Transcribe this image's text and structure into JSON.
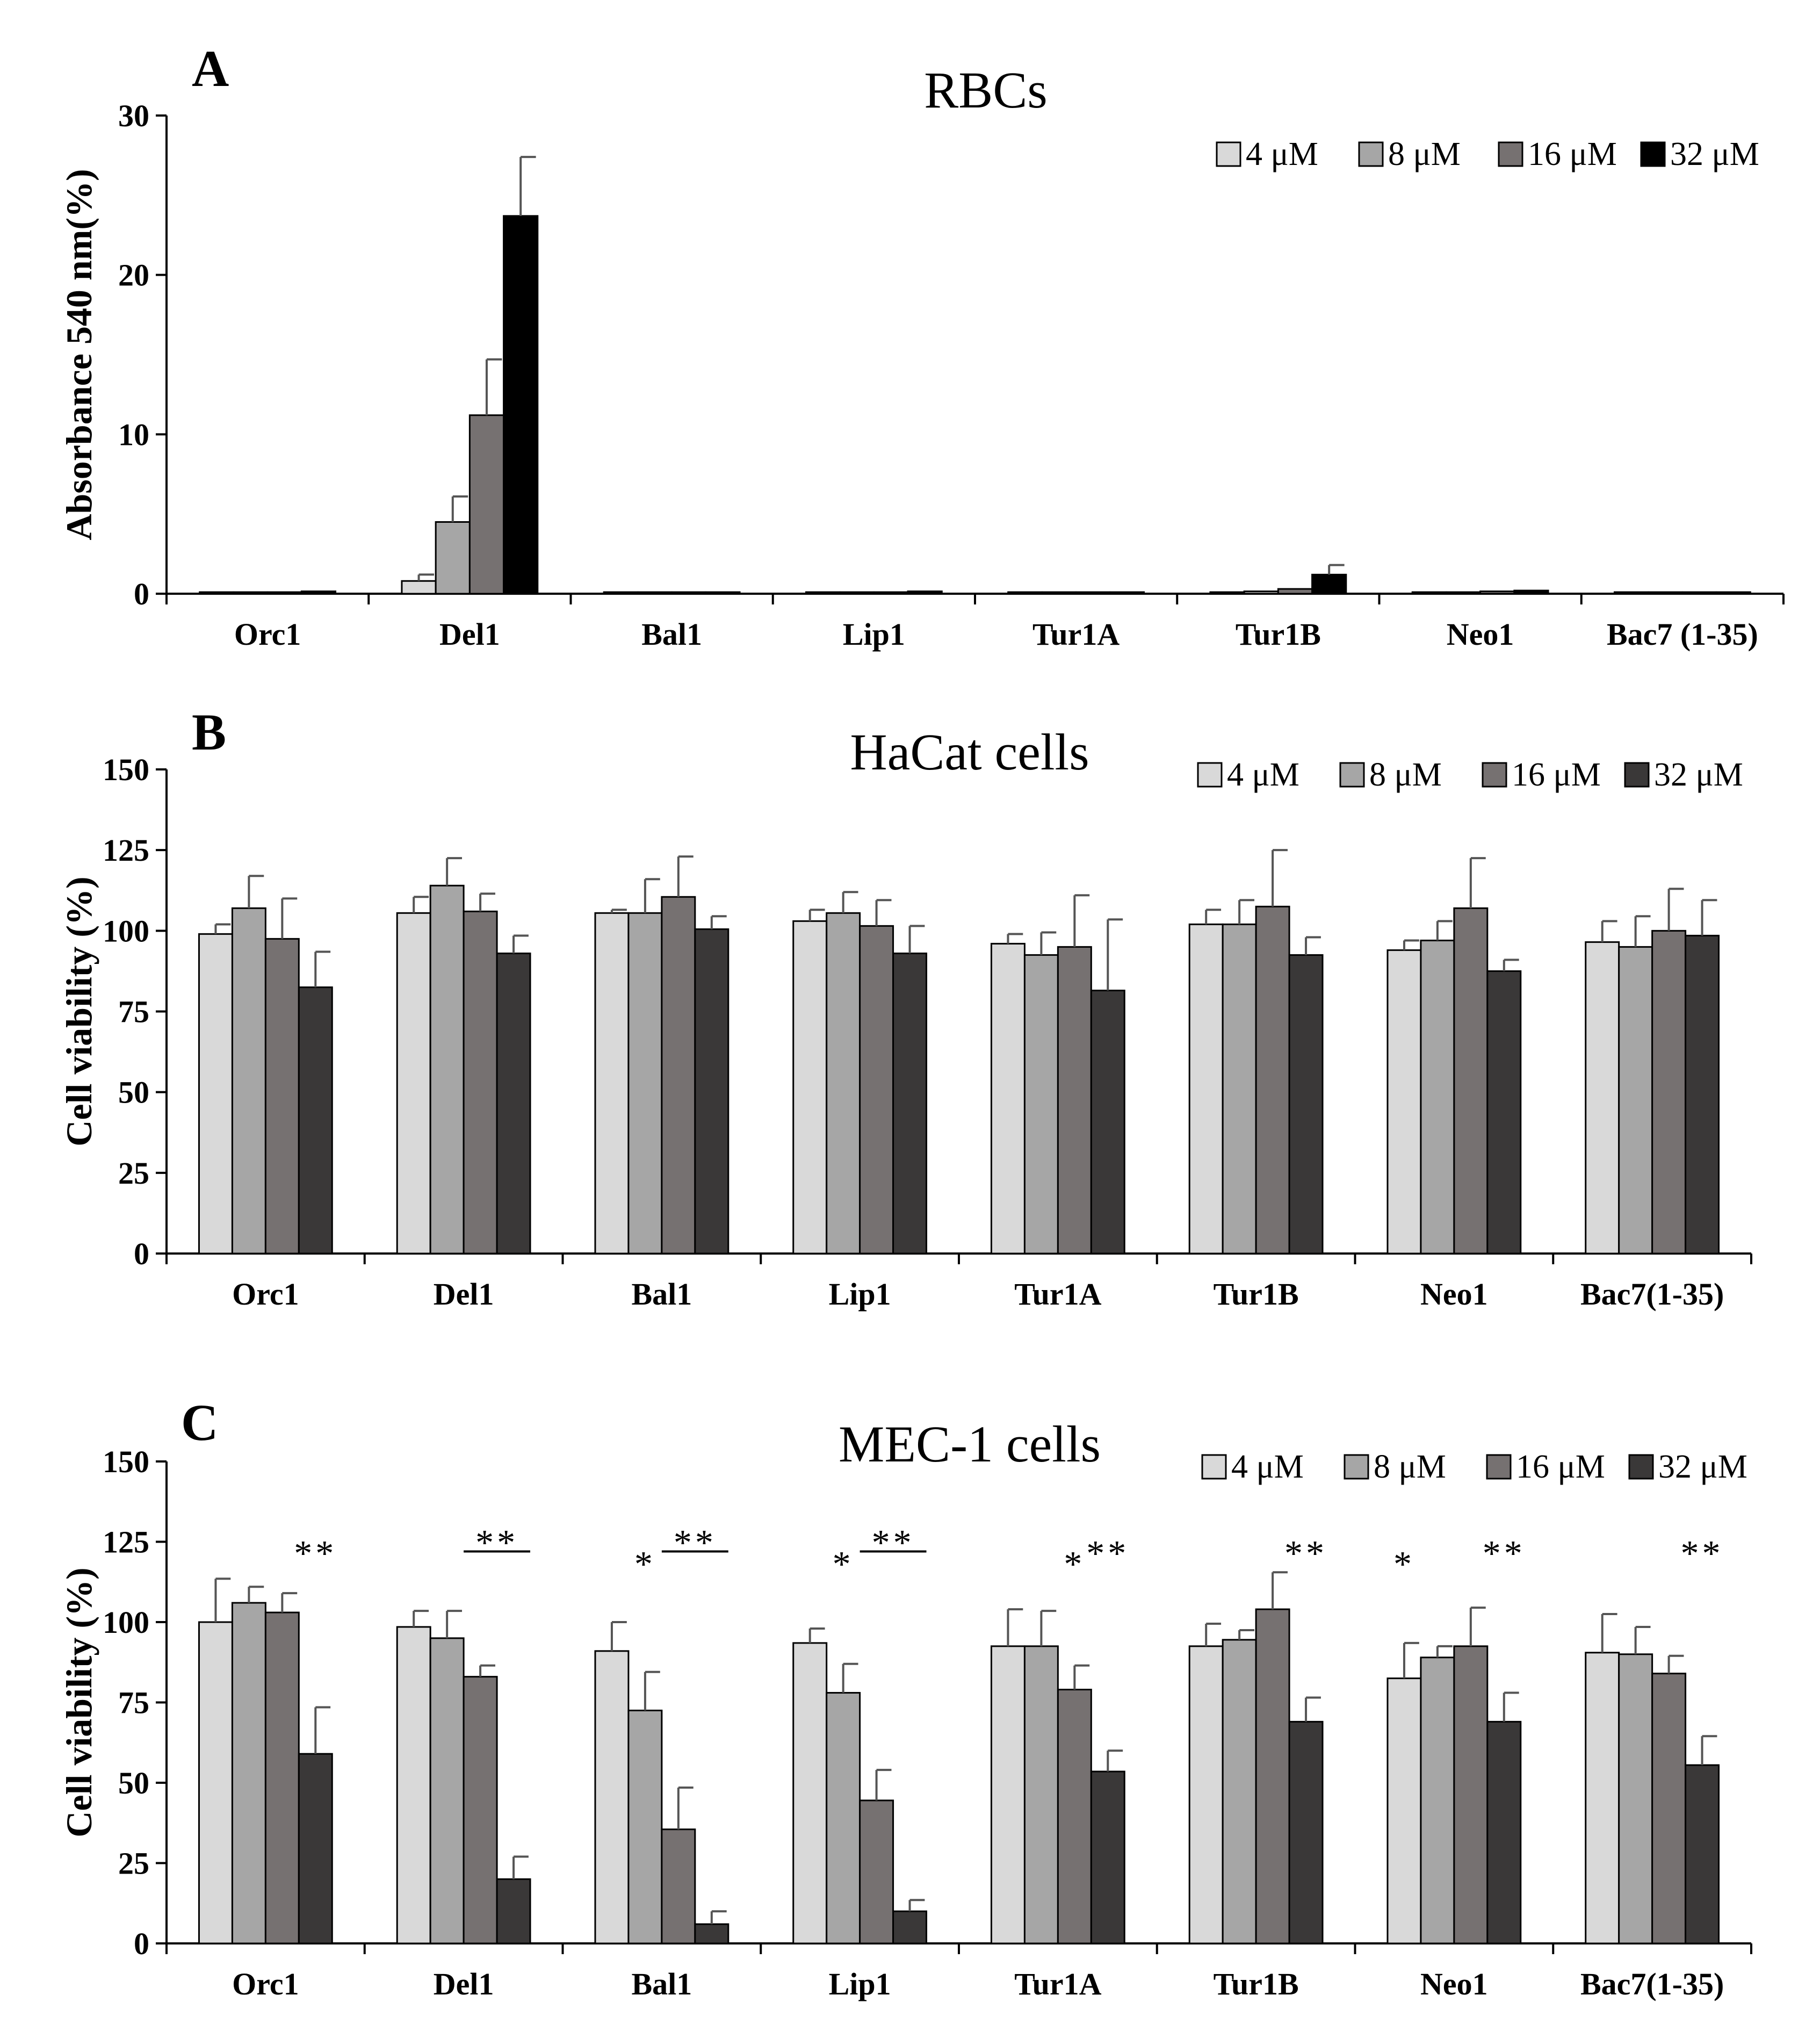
{
  "figure": {
    "categories_style": "bold",
    "colors": {
      "axis": "#000000",
      "errorbar": "#555555"
    }
  },
  "chart_data": [
    {
      "type": "bar",
      "panel_letter": "A",
      "title": "RBCs",
      "ylabel": "Absorbance 540 nm(%)",
      "xlabel": "",
      "ylim": [
        0,
        30
      ],
      "yticks": [
        0,
        10,
        20,
        30
      ],
      "grid": false,
      "legend_position": "top-right",
      "categories": [
        "Orc1",
        "Del1",
        "Bal1",
        "Lip1",
        "Tur1A",
        "Tur1B",
        "Neo1",
        "Bac7 (1-35)"
      ],
      "series": [
        {
          "name": "4 μM",
          "color": "#d9d9d9",
          "values": [
            0.1,
            0.8,
            0.1,
            0.1,
            0.1,
            0.1,
            0.1,
            0.1
          ],
          "errors": [
            0,
            0.4,
            0,
            0,
            0,
            0,
            0,
            0
          ]
        },
        {
          "name": "8 μM",
          "color": "#a6a6a6",
          "values": [
            0.1,
            4.5,
            0.1,
            0.1,
            0.1,
            0.15,
            0.1,
            0.1
          ],
          "errors": [
            0,
            1.6,
            0,
            0,
            0,
            0,
            0,
            0
          ]
        },
        {
          "name": "16 μM",
          "color": "#767171",
          "values": [
            0.1,
            11.2,
            0.1,
            0.1,
            0.1,
            0.3,
            0.15,
            0.1
          ],
          "errors": [
            0,
            3.5,
            0,
            0,
            0,
            0,
            0,
            0
          ]
        },
        {
          "name": "32 μM",
          "color": "#000000",
          "values": [
            0.15,
            23.7,
            0.1,
            0.15,
            0.1,
            1.2,
            0.2,
            0.1
          ],
          "errors": [
            0,
            3.7,
            0,
            0,
            0,
            0.6,
            0,
            0
          ]
        }
      ],
      "annotations": []
    },
    {
      "type": "bar",
      "panel_letter": "B",
      "title": "HaCat cells",
      "ylabel": "Cell viability (%)",
      "xlabel": "",
      "ylim": [
        0,
        150
      ],
      "yticks": [
        0,
        25,
        50,
        75,
        100,
        125,
        150
      ],
      "grid": false,
      "legend_position": "top-right",
      "categories": [
        "Orc1",
        "Del1",
        "Bal1",
        "Lip1",
        "Tur1A",
        "Tur1B",
        "Neo1",
        "Bac7(1-35)"
      ],
      "series": [
        {
          "name": "4 μM",
          "color": "#d9d9d9",
          "values": [
            99,
            105.5,
            105.5,
            103,
            96,
            102,
            94,
            96.5
          ],
          "errors": [
            3,
            5,
            1,
            3.5,
            3,
            4.5,
            3,
            6.5
          ]
        },
        {
          "name": "8 μM",
          "color": "#a6a6a6",
          "values": [
            107,
            114,
            105.5,
            105.5,
            92.5,
            102,
            97,
            95
          ],
          "errors": [
            10,
            8.5,
            10.5,
            6.5,
            7,
            7.5,
            6,
            9.5
          ]
        },
        {
          "name": "16 μM",
          "color": "#767171",
          "values": [
            97.5,
            106,
            110.5,
            101.5,
            95,
            107.5,
            107,
            100
          ],
          "errors": [
            12.5,
            5.5,
            12.5,
            8,
            16,
            17.5,
            15.5,
            13
          ]
        },
        {
          "name": "32 μM",
          "color": "#3a3838",
          "values": [
            82.5,
            93,
            100.5,
            93,
            81.5,
            92.5,
            87.5,
            98.5
          ],
          "errors": [
            11,
            5.5,
            4,
            8.5,
            22,
            5.5,
            3.5,
            11
          ]
        }
      ],
      "annotations": []
    },
    {
      "type": "bar",
      "panel_letter": "C",
      "title": "MEC-1 cells",
      "ylabel": "Cell viability (%)",
      "xlabel": "",
      "ylim": [
        0,
        150
      ],
      "yticks": [
        0,
        25,
        50,
        75,
        100,
        125,
        150
      ],
      "grid": false,
      "legend_position": "top-right",
      "categories": [
        "Orc1",
        "Del1",
        "Bal1",
        "Lip1",
        "Tur1A",
        "Tur1B",
        "Neo1",
        "Bac7(1-35)"
      ],
      "series": [
        {
          "name": "4 μM",
          "color": "#d9d9d9",
          "values": [
            100,
            98.5,
            91,
            93.5,
            92.5,
            92.5,
            82.5,
            90.5
          ],
          "errors": [
            13.5,
            5,
            9,
            4.5,
            11.5,
            7,
            11,
            12
          ]
        },
        {
          "name": "8 μM",
          "color": "#a6a6a6",
          "values": [
            106,
            95,
            72.5,
            78,
            92.5,
            94.5,
            89,
            90
          ],
          "errors": [
            5,
            8.5,
            12,
            9,
            11,
            3,
            3.5,
            8.5
          ]
        },
        {
          "name": "16 μM",
          "color": "#767171",
          "values": [
            103,
            83,
            35.5,
            44.5,
            79,
            104,
            92.5,
            84
          ],
          "errors": [
            6,
            3.5,
            13,
            9.5,
            7.5,
            11.5,
            12,
            5.5
          ]
        },
        {
          "name": "32 μM",
          "color": "#3a3838",
          "values": [
            59,
            20,
            6,
            10,
            53.5,
            69,
            69,
            55.5
          ],
          "errors": [
            14.5,
            7,
            4,
            3.5,
            6.5,
            7.5,
            9,
            9
          ]
        }
      ],
      "annotations": [
        {
          "category": 0,
          "from_series": 3,
          "to_series": 3,
          "text": "**",
          "line": false
        },
        {
          "category": 1,
          "from_series": 2,
          "to_series": 3,
          "text": "**",
          "line": true
        },
        {
          "category": 2,
          "from_series": 1,
          "to_series": 1,
          "text": "*",
          "line": false
        },
        {
          "category": 2,
          "from_series": 2,
          "to_series": 3,
          "text": "**",
          "line": true
        },
        {
          "category": 3,
          "from_series": 1,
          "to_series": 1,
          "text": "*",
          "line": false
        },
        {
          "category": 3,
          "from_series": 2,
          "to_series": 3,
          "text": "**",
          "line": true
        },
        {
          "category": 4,
          "from_series": 2,
          "to_series": 2,
          "text": "*",
          "line": false
        },
        {
          "category": 4,
          "from_series": 3,
          "to_series": 3,
          "text": "**",
          "line": false
        },
        {
          "category": 5,
          "from_series": 3,
          "to_series": 3,
          "text": "**",
          "line": false
        },
        {
          "category": 6,
          "from_series": 0,
          "to_series": 0,
          "text": "*",
          "line": false
        },
        {
          "category": 6,
          "from_series": 3,
          "to_series": 3,
          "text": "**",
          "line": false
        },
        {
          "category": 7,
          "from_series": 3,
          "to_series": 3,
          "text": "**",
          "line": false
        }
      ]
    }
  ]
}
